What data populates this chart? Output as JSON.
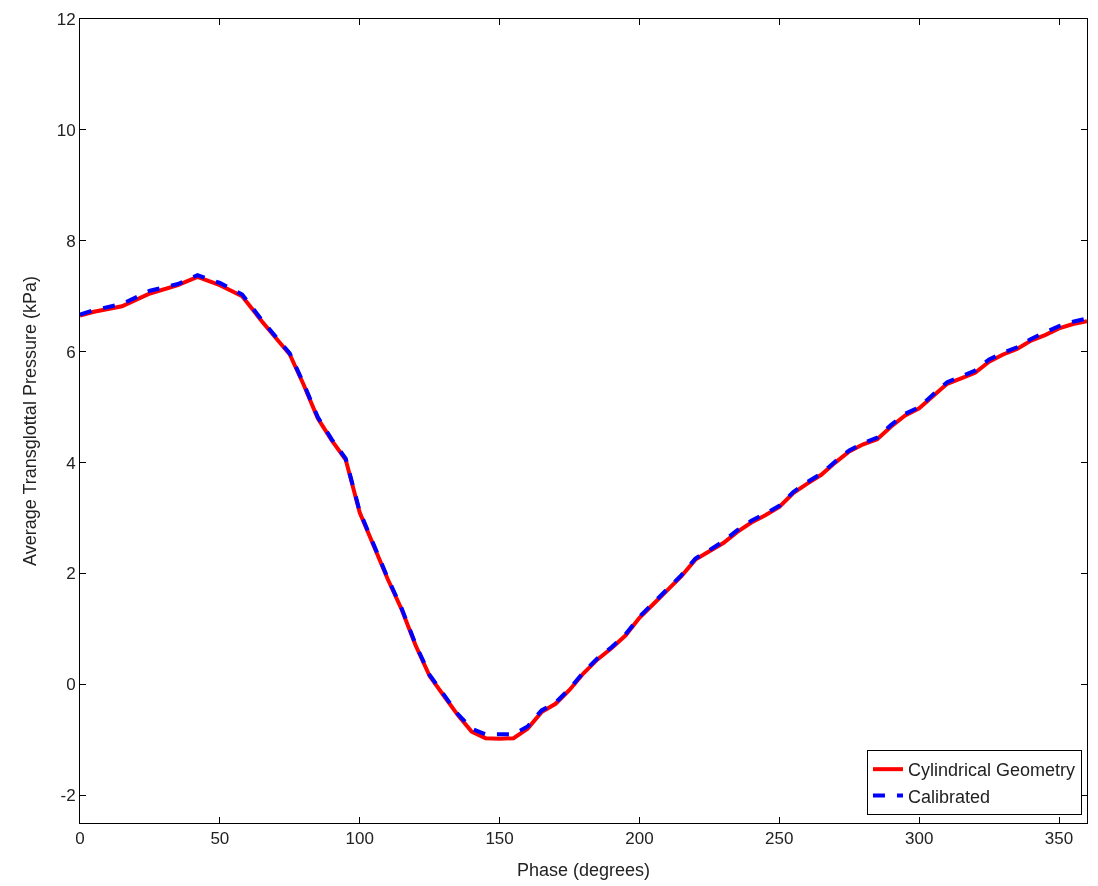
{
  "chart_data": {
    "type": "line",
    "xlabel": "Phase (degrees)",
    "ylabel": "Average Transglottal Pressure (kPa)",
    "xlim": [
      0,
      360
    ],
    "ylim": [
      -2.5,
      12
    ],
    "xticks": [
      0,
      50,
      100,
      150,
      200,
      250,
      300,
      350
    ],
    "yticks": [
      -2,
      0,
      2,
      4,
      6,
      8,
      10,
      12
    ],
    "legend": "bottom right",
    "x": [
      0,
      5,
      15,
      25,
      35,
      42,
      50,
      58,
      65,
      75,
      80,
      85,
      90,
      95,
      100,
      105,
      110,
      115,
      120,
      125,
      130,
      135,
      140,
      145,
      150,
      155,
      160,
      165,
      170,
      175,
      180,
      185,
      190,
      195,
      200,
      205,
      210,
      215,
      220,
      225,
      230,
      235,
      240,
      245,
      250,
      255,
      260,
      265,
      270,
      275,
      280,
      285,
      290,
      295,
      300,
      305,
      310,
      315,
      320,
      325,
      330,
      335,
      340,
      345,
      350,
      355,
      360
    ],
    "series": [
      {
        "name": "Cylindrical Geometry",
        "color": "#ff0000",
        "line_style": "solid",
        "values": [
          6.65,
          6.72,
          6.82,
          7.05,
          7.2,
          7.35,
          7.2,
          7.0,
          6.55,
          5.95,
          5.4,
          4.8,
          4.4,
          4.05,
          3.1,
          2.5,
          1.9,
          1.35,
          0.7,
          0.15,
          -0.2,
          -0.55,
          -0.85,
          -0.97,
          -0.98,
          -0.97,
          -0.8,
          -0.5,
          -0.35,
          -0.1,
          0.2,
          0.45,
          0.65,
          0.88,
          1.2,
          1.45,
          1.7,
          1.95,
          2.25,
          2.4,
          2.55,
          2.75,
          2.92,
          3.05,
          3.2,
          3.45,
          3.62,
          3.78,
          4.0,
          4.2,
          4.33,
          4.42,
          4.65,
          4.85,
          4.98,
          5.2,
          5.42,
          5.52,
          5.62,
          5.82,
          5.95,
          6.05,
          6.2,
          6.3,
          6.42,
          6.5,
          6.55
        ]
      },
      {
        "name": "Calibrated",
        "color": "#0000ff",
        "line_style": "dashed",
        "values": [
          6.67,
          6.75,
          6.86,
          7.1,
          7.22,
          7.38,
          7.24,
          7.03,
          6.57,
          5.97,
          5.42,
          4.82,
          4.42,
          4.07,
          3.12,
          2.52,
          1.92,
          1.37,
          0.72,
          0.17,
          -0.18,
          -0.53,
          -0.8,
          -0.9,
          -0.9,
          -0.9,
          -0.76,
          -0.47,
          -0.33,
          -0.08,
          0.22,
          0.47,
          0.67,
          0.9,
          1.22,
          1.47,
          1.72,
          1.97,
          2.27,
          2.42,
          2.58,
          2.78,
          2.95,
          3.08,
          3.22,
          3.47,
          3.65,
          3.8,
          4.02,
          4.22,
          4.35,
          4.45,
          4.68,
          4.88,
          5.0,
          5.23,
          5.45,
          5.55,
          5.66,
          5.86,
          5.98,
          6.08,
          6.23,
          6.35,
          6.46,
          6.54,
          6.6
        ]
      }
    ]
  }
}
